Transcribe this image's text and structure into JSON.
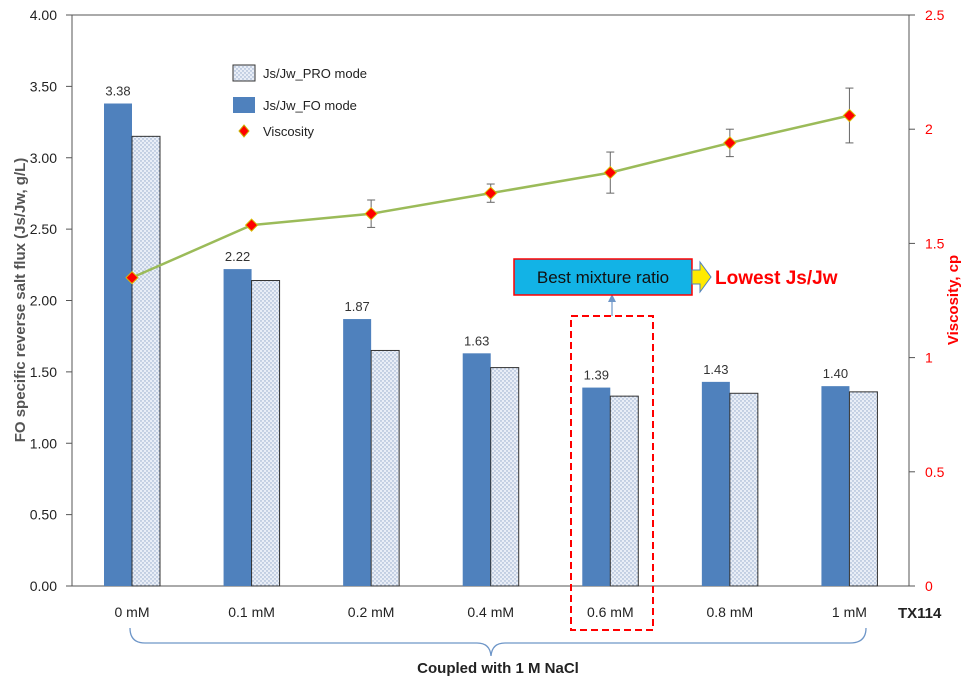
{
  "chart_data": {
    "type": "bar",
    "categories": [
      "0 mM",
      "0.1 mM",
      "0.2 mM",
      "0.4 mM",
      "0.6 mM",
      "0.8 mM",
      "1 mM"
    ],
    "series": [
      {
        "name": "Js/Jw_FO mode",
        "kind": "bar",
        "axis": "left",
        "values": [
          3.38,
          2.22,
          1.87,
          1.63,
          1.39,
          1.43,
          1.4
        ],
        "data_labels": [
          "3.38",
          "2.22",
          "1.87",
          "1.63",
          "1.39",
          "1.43",
          "1.40"
        ],
        "color": "#4f81bd"
      },
      {
        "name": "Js/Jw_PRO mode",
        "kind": "bar",
        "axis": "left",
        "values": [
          3.15,
          2.14,
          1.65,
          1.53,
          1.33,
          1.35,
          1.36
        ],
        "color": "#dce6f2"
      },
      {
        "name": "Viscosity",
        "kind": "line",
        "axis": "right",
        "values": [
          1.35,
          1.58,
          1.63,
          1.72,
          1.81,
          1.94,
          2.06
        ],
        "error": [
          0.0,
          0.0,
          0.06,
          0.04,
          0.09,
          0.06,
          0.12
        ],
        "color": "#9bbb59",
        "marker_color": "#ff0000"
      }
    ],
    "ylabel": "FO specific reverse salt flux (Js/Jw, g/L)",
    "ylabel_right": "Viscosity, cp",
    "ylim": [
      0,
      4
    ],
    "ylim_right": [
      0,
      2.5
    ],
    "yticks": [
      "0.00",
      "0.50",
      "1.00",
      "1.50",
      "2.00",
      "2.50",
      "3.00",
      "3.50",
      "4.00"
    ],
    "yticks_right": [
      "0",
      "0.5",
      "1",
      "1.5",
      "2",
      "2.5"
    ],
    "x_unit": "TX114",
    "bracket_label": "Coupled with 1 M NaCl",
    "annotation": {
      "box_text": "Best mixture ratio",
      "arrow_text": "Lowest Js/Jw",
      "highlight_category": "0.6 mM"
    },
    "grid": false,
    "legend_position": "top-left"
  }
}
